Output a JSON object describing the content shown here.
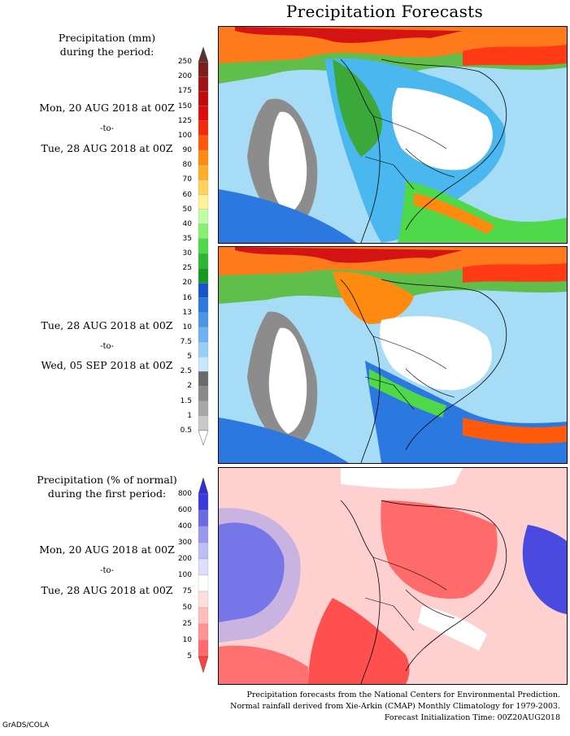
{
  "title": "Precipitation Forecasts",
  "panel1": {
    "heading_line1": "Precipitation (mm)",
    "heading_line2": "during the period:",
    "start": "Mon, 20 AUG 2018 at 00Z",
    "to": "-to-",
    "end": "Tue, 28 AUG 2018 at 00Z"
  },
  "panel2": {
    "start": "Tue, 28 AUG 2018 at 00Z",
    "to": "-to-",
    "end": "Wed, 05 SEP 2018 at 00Z"
  },
  "panel3": {
    "heading_line1": "Precipitation (% of normal)",
    "heading_line2": "during the first period:",
    "start": "Mon, 20 AUG 2018 at 00Z",
    "to": "-to-",
    "end": "Tue, 28 AUG 2018 at 00Z"
  },
  "precip_scale": {
    "ticks": [
      "250",
      "200",
      "175",
      "150",
      "125",
      "100",
      "90",
      "80",
      "70",
      "60",
      "50",
      "40",
      "35",
      "30",
      "25",
      "20",
      "16",
      "13",
      "10",
      "7.5",
      "5",
      "2.5",
      "2",
      "1.5",
      "1",
      "0.5"
    ],
    "colors": [
      "#7a1e1e",
      "#9e1414",
      "#c00b0b",
      "#dd0d0d",
      "#f02a0a",
      "#ff5a0a",
      "#ff8a10",
      "#ffae2a",
      "#ffd25a",
      "#fff09a",
      "#bfffa6",
      "#86f070",
      "#4ed84a",
      "#2bb730",
      "#149a1f",
      "#1455c8",
      "#2a78e0",
      "#4896ea",
      "#6db2f2",
      "#97cef7",
      "#c6e8fb",
      "#6a6a6a",
      "#8a8a8a",
      "#a8a8a8",
      "#c8c8c8"
    ],
    "arrow_top_color": "#5a3030",
    "arrow_bottom_color": "#ffffff"
  },
  "pct_scale": {
    "ticks": [
      "800",
      "600",
      "400",
      "300",
      "200",
      "100",
      "75",
      "50",
      "25",
      "10",
      "5"
    ],
    "colors": [
      "#3a3adc",
      "#6a6ae6",
      "#9898ee",
      "#bebef4",
      "#dedefa",
      "#ffffff",
      "#ffdede",
      "#ffbcbc",
      "#ff9292",
      "#ff6a6a"
    ],
    "arrow_top_color": "#3030d0",
    "arrow_bottom_color": "#ff4040"
  },
  "footer": {
    "line1": "Precipitation forecasts from the National Centers for Environmental Prediction.",
    "line2": "Normal rainfall derived from Xie-Arkin (CMAP) Monthly Climatology for 1979-2003.",
    "line3": "Forecast Initialization Time: 00Z20AUG2018"
  },
  "credit": "GrADS/COLA"
}
